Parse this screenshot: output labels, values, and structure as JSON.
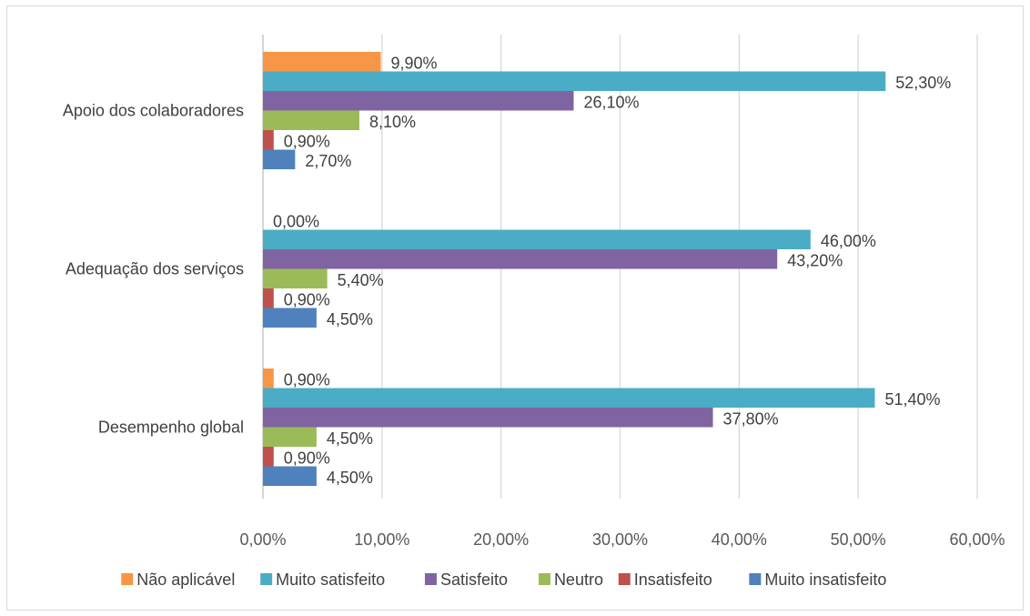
{
  "chart_data": {
    "type": "bar",
    "orientation": "horizontal",
    "categories": [
      "Apoio dos colaboradores",
      "Adequação dos serviços",
      "Desempenho global"
    ],
    "series": [
      {
        "name": "Não aplicável",
        "color": "#F79646",
        "values": [
          9.9,
          0.0,
          0.9
        ],
        "labels": [
          "9,90%",
          "0,00%",
          "0,90%"
        ]
      },
      {
        "name": "Muito satisfeito",
        "color": "#4BACC6",
        "values": [
          52.3,
          46.0,
          51.4
        ],
        "labels": [
          "52,30%",
          "46,00%",
          "51,40%"
        ]
      },
      {
        "name": "Satisfeito",
        "color": "#8064A2",
        "values": [
          26.1,
          43.2,
          37.8
        ],
        "labels": [
          "26,10%",
          "43,20%",
          "37,80%"
        ]
      },
      {
        "name": "Neutro",
        "color": "#9BBB59",
        "values": [
          8.1,
          5.4,
          4.5
        ],
        "labels": [
          "8,10%",
          "5,40%",
          "4,50%"
        ]
      },
      {
        "name": "Insatisfeito",
        "color": "#C0504D",
        "values": [
          0.9,
          0.9,
          0.9
        ],
        "labels": [
          "0,90%",
          "0,90%",
          "0,90%"
        ]
      },
      {
        "name": "Muito insatisfeito",
        "color": "#4F81BD",
        "values": [
          2.7,
          4.5,
          4.5
        ],
        "labels": [
          "2,70%",
          "4,50%",
          "4,50%"
        ]
      }
    ],
    "xlim": [
      0,
      60
    ],
    "xticks": [
      0,
      10,
      20,
      30,
      40,
      50,
      60
    ],
    "xtick_labels": [
      "0,00%",
      "10,00%",
      "20,00%",
      "30,00%",
      "40,00%",
      "50,00%",
      "60,00%"
    ],
    "grid": "vertical",
    "legend_position": "bottom",
    "title": "",
    "xlabel": "",
    "ylabel": ""
  }
}
